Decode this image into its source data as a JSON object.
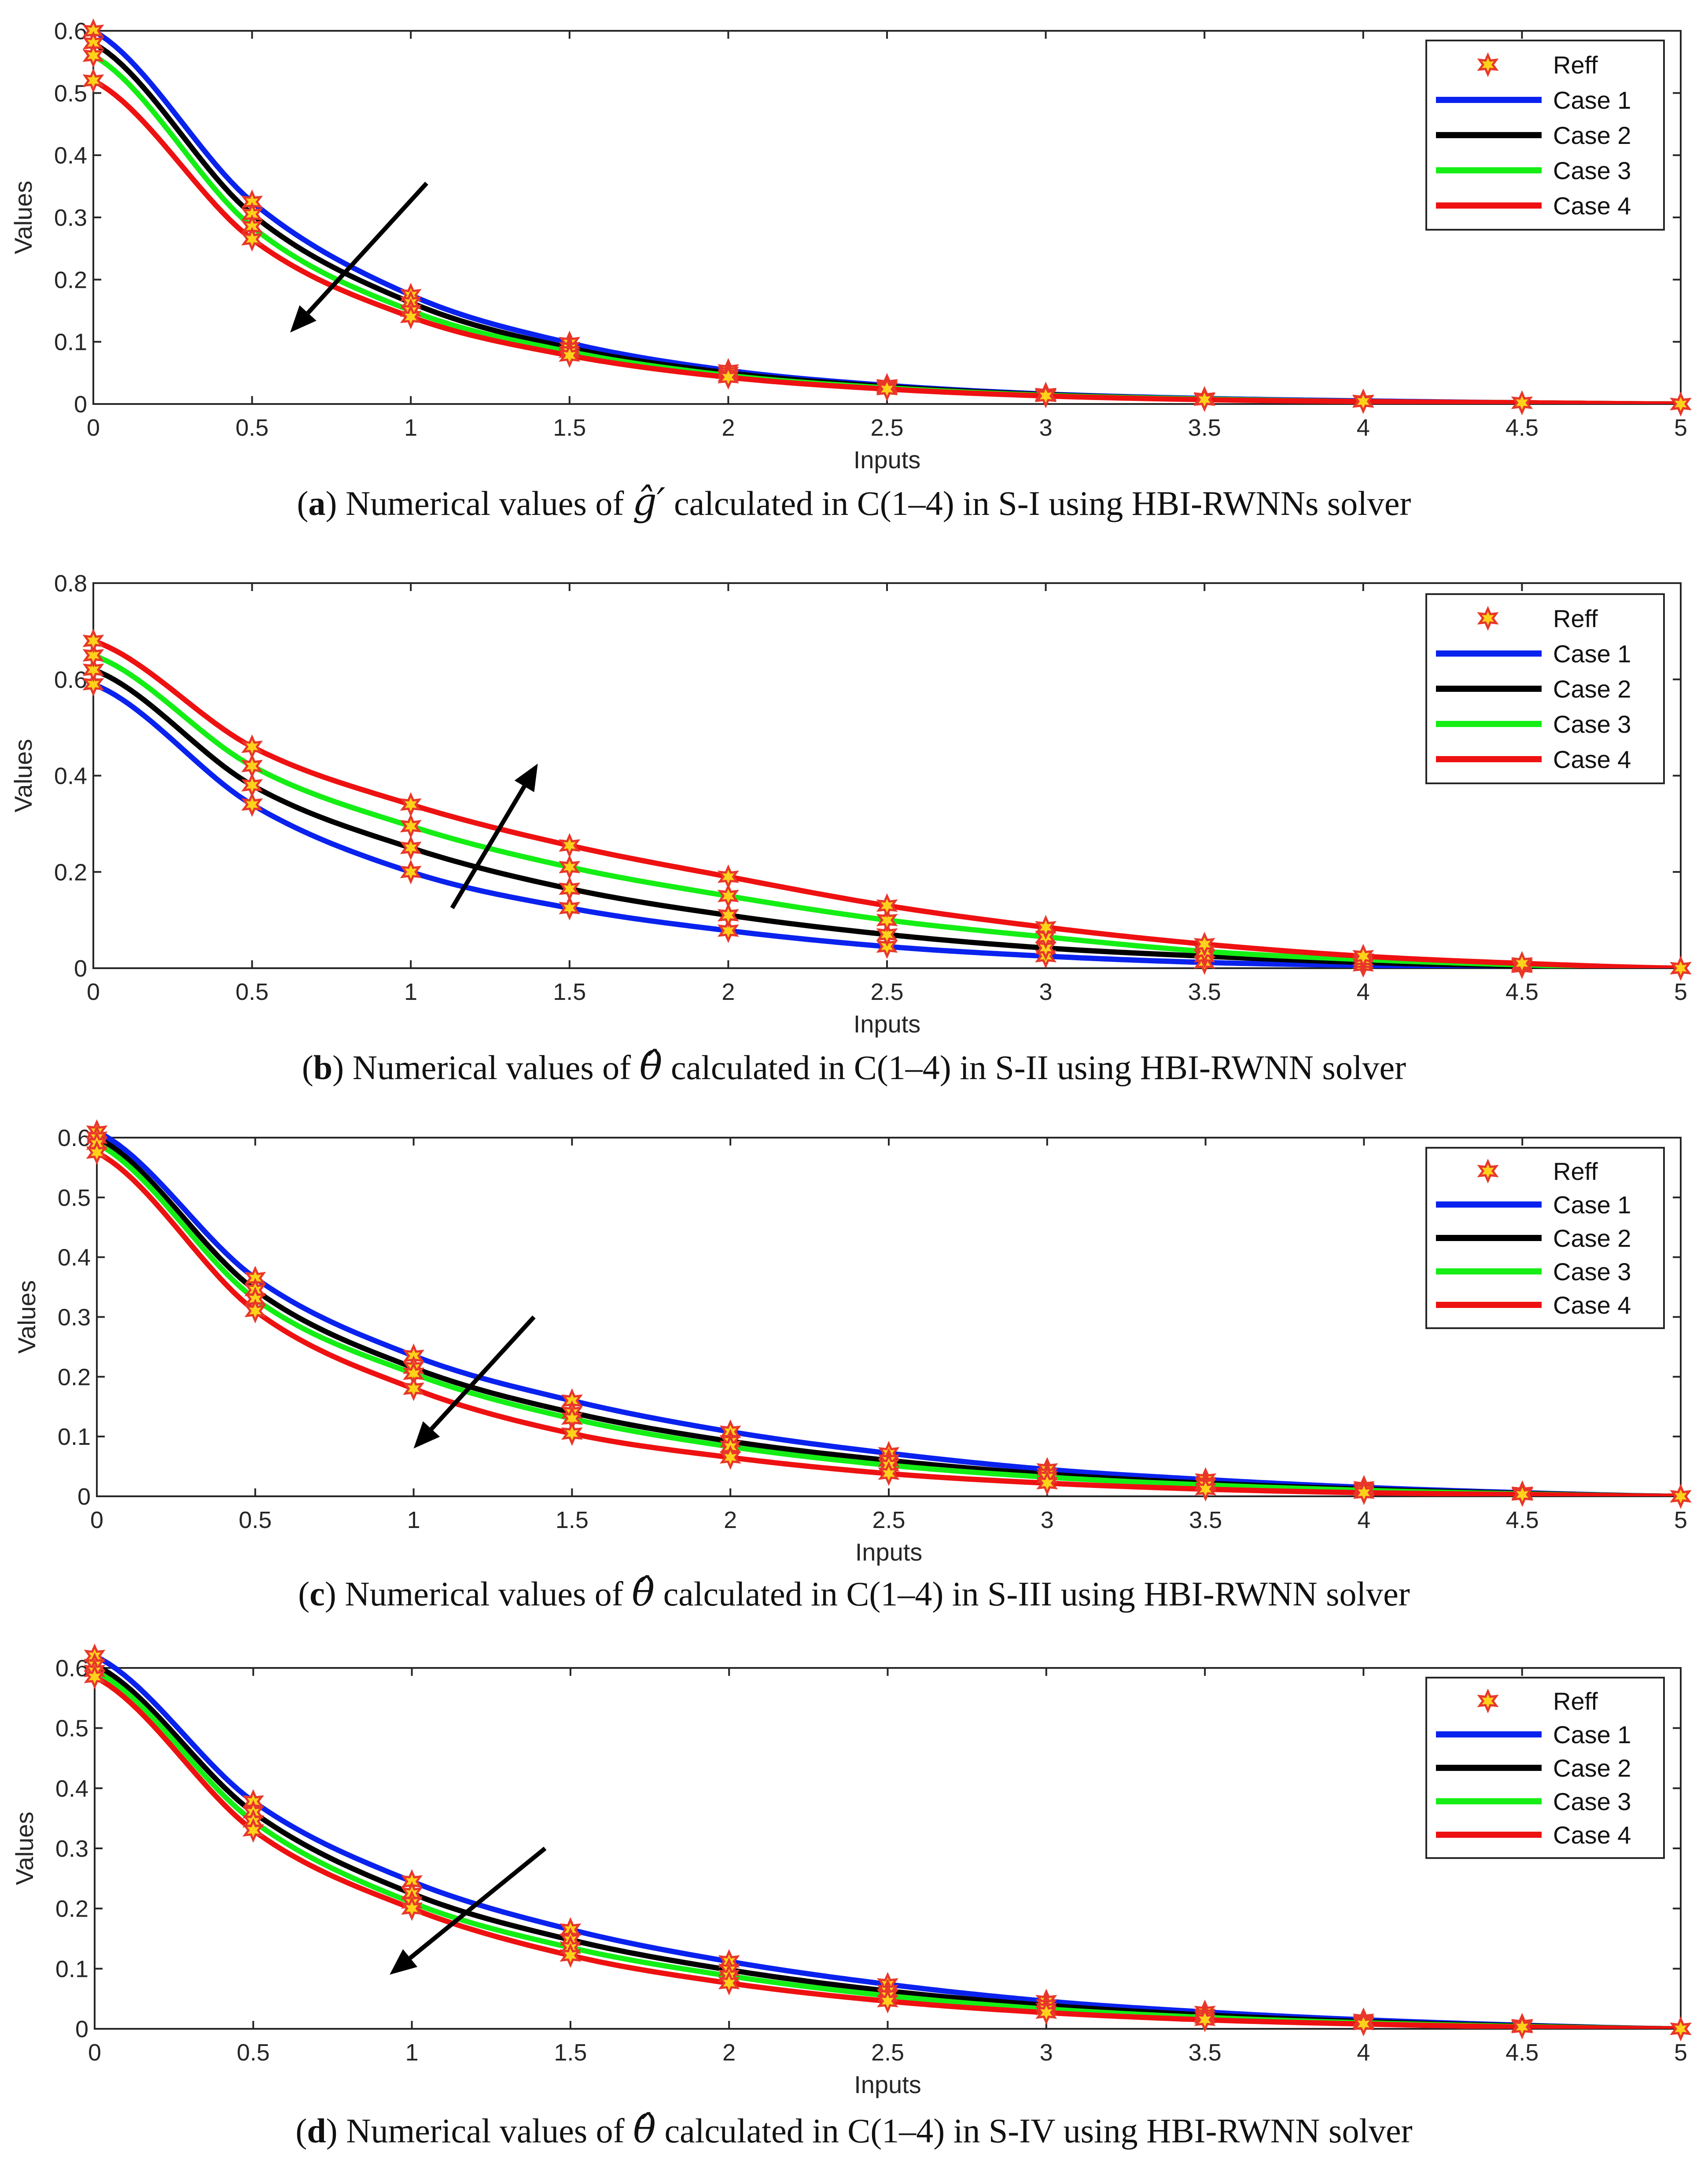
{
  "colors": {
    "reff_fill": "#ffd21a",
    "reff_edge": "#e8372a",
    "case1": "#0a22ee",
    "case2": "#000000",
    "case3": "#15ee15",
    "case4": "#ee1111",
    "arrow": "#000000"
  },
  "chart_data": [
    {
      "type": "line",
      "panel": "a",
      "caption_letter": "a",
      "caption_before": "Numerical values of",
      "caption_symbol": "ĝ′",
      "caption_after": "calculated in C(1–4) in S-I using HBI-RWNNs solver",
      "xlabel": "Inputs",
      "ylabel": "Values",
      "xlim": [
        0,
        5
      ],
      "ylim": [
        0,
        0.6
      ],
      "xticks": [
        "0",
        "0.5",
        "1",
        "1.5",
        "2",
        "2.5",
        "3",
        "3.5",
        "4",
        "4.5",
        "5"
      ],
      "yticks": [
        "0",
        "0.1",
        "0.2",
        "0.3",
        "0.4",
        "0.5",
        "0.6"
      ],
      "ytick_values": [
        0,
        0.1,
        0.2,
        0.3,
        0.4,
        0.5,
        0.6
      ],
      "legend": [
        "Reff",
        "Case 1",
        "Case 2",
        "Case 3",
        "Case 4"
      ],
      "legend_position": "top-right",
      "arrow": {
        "from": [
          1.05,
          0.355
        ],
        "to": [
          0.62,
          0.115
        ],
        "direction": "decreasing"
      },
      "x": [
        0,
        0.5,
        1,
        1.5,
        2,
        2.5,
        3,
        3.5,
        4,
        4.5,
        5
      ],
      "series": [
        {
          "name": "Case 1",
          "values": [
            0.6,
            0.325,
            0.175,
            0.098,
            0.054,
            0.03,
            0.016,
            0.009,
            0.005,
            0.002,
            0.0
          ]
        },
        {
          "name": "Case 2",
          "values": [
            0.58,
            0.305,
            0.163,
            0.09,
            0.05,
            0.028,
            0.015,
            0.008,
            0.004,
            0.002,
            0.0
          ]
        },
        {
          "name": "Case 3",
          "values": [
            0.56,
            0.285,
            0.15,
            0.084,
            0.046,
            0.026,
            0.014,
            0.008,
            0.004,
            0.002,
            0.0
          ]
        },
        {
          "name": "Case 4",
          "values": [
            0.52,
            0.265,
            0.14,
            0.078,
            0.043,
            0.024,
            0.013,
            0.007,
            0.004,
            0.002,
            0.0
          ]
        }
      ]
    },
    {
      "type": "line",
      "panel": "b",
      "caption_letter": "b",
      "caption_before": "Numerical values of",
      "caption_symbol": "θ̂",
      "caption_after": "calculated in C(1–4) in S-II using HBI-RWNN solver",
      "xlabel": "Inputs",
      "ylabel": "Values",
      "xlim": [
        0,
        5
      ],
      "ylim": [
        0,
        0.8
      ],
      "xticks": [
        "0",
        "0.5",
        "1",
        "1.5",
        "2",
        "2.5",
        "3",
        "3.5",
        "4",
        "4.5",
        "5"
      ],
      "yticks": [
        "0",
        "0.2",
        "0.4",
        "0.6",
        "0.8"
      ],
      "ytick_values": [
        0,
        0.2,
        0.4,
        0.6,
        0.8
      ],
      "legend": [
        "Reff",
        "Case 1",
        "Case 2",
        "Case 3",
        "Case 4"
      ],
      "legend_position": "top-right",
      "arrow": {
        "from": [
          1.13,
          0.125
        ],
        "to": [
          1.4,
          0.425
        ],
        "direction": "increasing"
      },
      "x": [
        0,
        0.5,
        1,
        1.5,
        2,
        2.5,
        3,
        3.5,
        4,
        4.5,
        5
      ],
      "series": [
        {
          "name": "Case 1",
          "values": [
            0.59,
            0.34,
            0.2,
            0.125,
            0.078,
            0.045,
            0.025,
            0.012,
            0.006,
            0.003,
            0.0
          ]
        },
        {
          "name": "Case 2",
          "values": [
            0.62,
            0.38,
            0.25,
            0.165,
            0.11,
            0.07,
            0.042,
            0.025,
            0.012,
            0.005,
            0.0
          ]
        },
        {
          "name": "Case 3",
          "values": [
            0.65,
            0.42,
            0.295,
            0.21,
            0.15,
            0.1,
            0.065,
            0.035,
            0.018,
            0.007,
            0.0
          ]
        },
        {
          "name": "Case 4",
          "values": [
            0.68,
            0.46,
            0.34,
            0.255,
            0.19,
            0.13,
            0.085,
            0.05,
            0.025,
            0.01,
            0.0
          ]
        }
      ]
    },
    {
      "type": "line",
      "panel": "c",
      "caption_letter": "c",
      "caption_before": "Numerical values of",
      "caption_symbol": "θ̂",
      "caption_after": "calculated in C(1–4) in S-III using HBI-RWNN solver",
      "xlabel": "Inputs",
      "ylabel": "Values",
      "xlim": [
        0,
        5
      ],
      "ylim": [
        0,
        0.6
      ],
      "xticks": [
        "0",
        "0.5",
        "1",
        "1.5",
        "2",
        "2.5",
        "3",
        "3.5",
        "4",
        "4.5",
        "5"
      ],
      "yticks": [
        "0",
        "0.1",
        "0.2",
        "0.3",
        "0.4",
        "0.5",
        "0.6"
      ],
      "ytick_values": [
        0,
        0.1,
        0.2,
        0.3,
        0.4,
        0.5,
        0.6
      ],
      "legend": [
        "Reff",
        "Case 1",
        "Case 2",
        "Case 3",
        "Case 4"
      ],
      "legend_position": "top-right",
      "arrow": {
        "from": [
          1.38,
          0.3
        ],
        "to": [
          1.0,
          0.08
        ],
        "direction": "decreasing"
      },
      "x": [
        0,
        0.5,
        1,
        1.5,
        2,
        2.5,
        3,
        3.5,
        4,
        4.5,
        5
      ],
      "series": [
        {
          "name": "Case 1",
          "values": [
            0.61,
            0.365,
            0.235,
            0.16,
            0.108,
            0.072,
            0.045,
            0.028,
            0.015,
            0.006,
            0.0
          ]
        },
        {
          "name": "Case 2",
          "values": [
            0.6,
            0.345,
            0.215,
            0.14,
            0.092,
            0.06,
            0.037,
            0.022,
            0.012,
            0.005,
            0.0
          ]
        },
        {
          "name": "Case 3",
          "values": [
            0.59,
            0.33,
            0.205,
            0.13,
            0.083,
            0.052,
            0.032,
            0.019,
            0.01,
            0.004,
            0.0
          ]
        },
        {
          "name": "Case 4",
          "values": [
            0.575,
            0.31,
            0.18,
            0.105,
            0.065,
            0.038,
            0.022,
            0.012,
            0.006,
            0.003,
            0.0
          ]
        }
      ]
    },
    {
      "type": "line",
      "panel": "d",
      "caption_letter": "d",
      "caption_before": "Numerical values of",
      "caption_symbol": "θ̂",
      "caption_after": "calculated in C(1–4) in S-IV using HBI-RWNN solver",
      "xlabel": "Inputs",
      "ylabel": "Values",
      "xlim": [
        0,
        5
      ],
      "ylim": [
        0,
        0.6
      ],
      "xticks": [
        "0",
        "0.5",
        "1",
        "1.5",
        "2",
        "2.5",
        "3",
        "3.5",
        "4",
        "4.5",
        "5"
      ],
      "yticks": [
        "0",
        "0.1",
        "0.2",
        "0.3",
        "0.4",
        "0.5",
        "0.6"
      ],
      "ytick_values": [
        0,
        0.1,
        0.2,
        0.3,
        0.4,
        0.5,
        0.6
      ],
      "legend": [
        "Reff",
        "Case 1",
        "Case 2",
        "Case 3",
        "Case 4"
      ],
      "legend_position": "top-right",
      "arrow": {
        "from": [
          1.42,
          0.3
        ],
        "to": [
          0.93,
          0.09
        ],
        "direction": "decreasing"
      },
      "x": [
        0,
        0.5,
        1,
        1.5,
        2,
        2.5,
        3,
        3.5,
        4,
        4.5,
        5
      ],
      "series": [
        {
          "name": "Case 1",
          "values": [
            0.62,
            0.378,
            0.245,
            0.165,
            0.112,
            0.074,
            0.046,
            0.028,
            0.015,
            0.006,
            0.0
          ]
        },
        {
          "name": "Case 2",
          "values": [
            0.605,
            0.36,
            0.225,
            0.148,
            0.098,
            0.063,
            0.039,
            0.023,
            0.012,
            0.005,
            0.0
          ]
        },
        {
          "name": "Case 3",
          "values": [
            0.595,
            0.345,
            0.21,
            0.135,
            0.088,
            0.055,
            0.033,
            0.019,
            0.01,
            0.004,
            0.0
          ]
        },
        {
          "name": "Case 4",
          "values": [
            0.585,
            0.33,
            0.2,
            0.122,
            0.076,
            0.046,
            0.027,
            0.015,
            0.008,
            0.003,
            0.0
          ]
        }
      ]
    }
  ]
}
